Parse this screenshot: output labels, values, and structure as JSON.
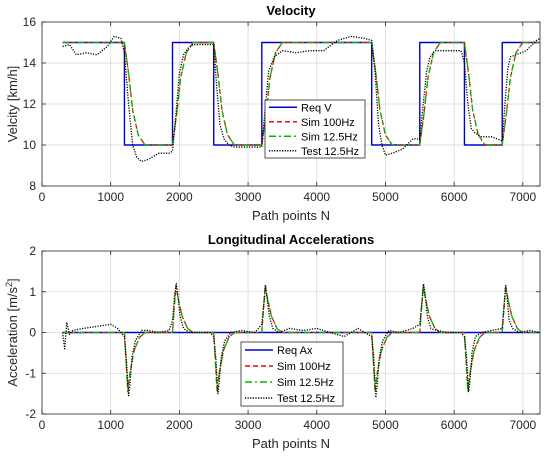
{
  "figure": {
    "colors": {
      "req": "#0000cc",
      "sim100": "#ff0000",
      "sim125": "#00bb00",
      "test": "#000000",
      "grid": "#d9d9d9",
      "axis": "#262626"
    }
  },
  "chart_data": [
    {
      "type": "line",
      "title": "Velocity",
      "xlabel": "Path points N",
      "ylabel": "Velcity [km/h]",
      "xlim": [
        0,
        7250
      ],
      "ylim": [
        8,
        16
      ],
      "xticks": [
        0,
        1000,
        2000,
        3000,
        4000,
        5000,
        6000,
        7000
      ],
      "xtick_labels": [
        "0",
        "1000",
        "2000",
        "3000",
        "4000",
        "5000",
        "6000",
        "7000"
      ],
      "yticks": [
        8,
        10,
        12,
        14,
        16
      ],
      "ytick_labels": [
        "8",
        "10",
        "12",
        "14",
        "16"
      ],
      "grid": true,
      "legend": "center",
      "series": [
        {
          "name": "Req V",
          "color": "#0000cc",
          "style": "solid",
          "x": [
            300,
            1200,
            1200,
            1900,
            1900,
            2500,
            2500,
            3200,
            3200,
            4800,
            4800,
            5500,
            5500,
            6150,
            6150,
            6700,
            6700,
            7250
          ],
          "y": [
            15,
            15,
            10,
            10,
            15,
            15,
            10,
            10,
            15,
            15,
            10,
            10,
            15,
            15,
            10,
            10,
            15,
            15
          ]
        },
        {
          "name": "Sim 100Hz",
          "color": "#ff0000",
          "style": "dashed",
          "x": [
            300,
            1200,
            1260,
            1320,
            1400,
            1500,
            1900,
            1960,
            2020,
            2100,
            2200,
            2500,
            2560,
            2620,
            2700,
            2800,
            3200,
            3260,
            3320,
            3400,
            3500,
            4800,
            4860,
            4920,
            5000,
            5100,
            5500,
            5560,
            5620,
            5700,
            5800,
            6150,
            6210,
            6270,
            6350,
            6450,
            6700,
            6760,
            6820,
            6900,
            7000,
            7250
          ],
          "y": [
            15,
            15,
            13.5,
            11.7,
            10.5,
            10,
            10,
            11.5,
            13.3,
            14.5,
            15,
            15,
            13.5,
            11.7,
            10.5,
            10,
            10,
            11.5,
            13.3,
            14.5,
            15,
            15,
            13.5,
            11.7,
            10.5,
            10,
            10,
            11.5,
            13.3,
            14.5,
            15,
            15,
            13.5,
            11.7,
            10.5,
            10,
            10,
            11.5,
            13.3,
            14.5,
            15,
            15
          ]
        },
        {
          "name": "Sim 12.5Hz",
          "color": "#00bb00",
          "style": "dashdot",
          "x": [
            300,
            1200,
            1260,
            1320,
            1400,
            1500,
            1900,
            1960,
            2020,
            2100,
            2200,
            2500,
            2560,
            2620,
            2700,
            2800,
            3200,
            3260,
            3320,
            3400,
            3500,
            4800,
            4860,
            4920,
            5000,
            5100,
            5500,
            5560,
            5620,
            5700,
            5800,
            6150,
            6210,
            6270,
            6350,
            6450,
            6700,
            6760,
            6820,
            6900,
            7000,
            7250
          ],
          "y": [
            15,
            15,
            13.5,
            11.7,
            10.5,
            10,
            10,
            11.5,
            13.3,
            14.5,
            15,
            15,
            13.5,
            11.7,
            10.5,
            10,
            10,
            11.5,
            13.3,
            14.5,
            15,
            15,
            13.5,
            11.7,
            10.5,
            10,
            10,
            11.5,
            13.3,
            14.5,
            15,
            15,
            13.5,
            11.7,
            10.5,
            10,
            10,
            11.5,
            13.3,
            14.5,
            15,
            15
          ]
        },
        {
          "name": "Test 12.5Hz",
          "color": "#000000",
          "style": "dotted",
          "x": [
            300,
            400,
            500,
            650,
            800,
            950,
            1050,
            1150,
            1200,
            1260,
            1320,
            1380,
            1450,
            1550,
            1700,
            1850,
            1900,
            1950,
            2000,
            2060,
            2120,
            2200,
            2350,
            2500,
            2540,
            2590,
            2650,
            2720,
            2800,
            3000,
            3200,
            3250,
            3300,
            3380,
            3500,
            3700,
            3900,
            4100,
            4300,
            4500,
            4700,
            4800,
            4850,
            4900,
            4950,
            5000,
            5100,
            5250,
            5400,
            5500,
            5550,
            5600,
            5650,
            5720,
            5800,
            5950,
            6100,
            6150,
            6200,
            6250,
            6300,
            6400,
            6550,
            6700,
            6740,
            6780,
            6820,
            6900,
            7050,
            7200,
            7250
          ],
          "y": [
            14.8,
            14.9,
            14.4,
            14.5,
            14.4,
            14.8,
            15.3,
            15.2,
            14.5,
            12.0,
            10.0,
            9.4,
            9.2,
            9.3,
            9.6,
            9.6,
            9.7,
            11.5,
            13.5,
            14.4,
            14.7,
            14.9,
            14.9,
            14.9,
            13.0,
            11.0,
            10.3,
            10.0,
            9.9,
            9.9,
            9.9,
            11.8,
            13.6,
            14.3,
            14.6,
            14.5,
            14.6,
            14.6,
            15.1,
            15.3,
            15.2,
            15.1,
            13.5,
            11.0,
            10.0,
            9.5,
            9.6,
            9.8,
            10.3,
            10.3,
            12.0,
            13.6,
            14.3,
            14.6,
            14.6,
            14.6,
            14.6,
            14.0,
            12.0,
            10.8,
            10.6,
            10.4,
            10.4,
            10.2,
            12.0,
            13.7,
            14.3,
            14.4,
            14.6,
            15.1,
            15.2
          ]
        }
      ]
    },
    {
      "type": "line",
      "title": "Longitudinal Accelerations",
      "xlabel": "Path points N",
      "ylabel": "Acceleration [m/s",
      "ylabel_sup": "2",
      "ylabel_end": "]",
      "xlim": [
        0,
        7250
      ],
      "ylim": [
        -2,
        2
      ],
      "xticks": [
        0,
        1000,
        2000,
        3000,
        4000,
        5000,
        6000,
        7000
      ],
      "xtick_labels": [
        "0",
        "1000",
        "2000",
        "3000",
        "4000",
        "5000",
        "6000",
        "7000"
      ],
      "yticks": [
        -2,
        -1,
        0,
        1,
        2
      ],
      "ytick_labels": [
        "-2",
        "-1",
        "0",
        "1",
        "2"
      ],
      "grid": true,
      "legend": "center",
      "series": [
        {
          "name": "Req Ax",
          "color": "#0000cc",
          "style": "solid",
          "x": [
            300,
            7250
          ],
          "y": [
            0,
            0
          ]
        },
        {
          "name": "Sim 100Hz",
          "color": "#ff0000",
          "style": "dashed",
          "x": [
            300,
            1200,
            1220,
            1250,
            1280,
            1340,
            1420,
            1500,
            1900,
            1920,
            1950,
            1980,
            2040,
            2120,
            2200,
            2500,
            2520,
            2550,
            2580,
            2640,
            2720,
            2800,
            3200,
            3220,
            3250,
            3280,
            3340,
            3420,
            3500,
            4800,
            4820,
            4850,
            4880,
            4940,
            5020,
            5100,
            5500,
            5520,
            5550,
            5580,
            5640,
            5720,
            5800,
            6150,
            6170,
            6200,
            6230,
            6290,
            6370,
            6450,
            6700,
            6720,
            6750,
            6780,
            6840,
            6920,
            7000,
            7250
          ],
          "y": [
            0,
            0,
            -0.6,
            -1.45,
            -1.0,
            -0.45,
            -0.12,
            0,
            0,
            0.5,
            1.15,
            0.85,
            0.4,
            0.1,
            0,
            0,
            -0.6,
            -1.45,
            -1.0,
            -0.45,
            -0.12,
            0,
            0,
            0.5,
            1.15,
            0.85,
            0.4,
            0.1,
            0,
            0,
            -0.6,
            -1.45,
            -1.0,
            -0.45,
            -0.12,
            0,
            0,
            0.5,
            1.15,
            0.85,
            0.4,
            0.1,
            0,
            0,
            -0.6,
            -1.45,
            -1.0,
            -0.45,
            -0.12,
            0,
            0,
            0.5,
            1.15,
            0.85,
            0.4,
            0.1,
            0,
            0
          ]
        },
        {
          "name": "Sim 12.5Hz",
          "color": "#00bb00",
          "style": "dashdot",
          "x": [
            300,
            1200,
            1220,
            1250,
            1280,
            1340,
            1420,
            1500,
            1900,
            1920,
            1950,
            1980,
            2040,
            2120,
            2200,
            2500,
            2520,
            2550,
            2580,
            2640,
            2720,
            2800,
            3200,
            3220,
            3250,
            3280,
            3340,
            3420,
            3500,
            4800,
            4820,
            4850,
            4880,
            4940,
            5020,
            5100,
            5500,
            5520,
            5550,
            5580,
            5640,
            5720,
            5800,
            6150,
            6170,
            6200,
            6230,
            6290,
            6370,
            6450,
            6700,
            6720,
            6750,
            6780,
            6840,
            6920,
            7000,
            7250
          ],
          "y": [
            0,
            0,
            -0.6,
            -1.45,
            -1.0,
            -0.45,
            -0.12,
            0,
            0,
            0.5,
            1.15,
            0.85,
            0.4,
            0.1,
            0,
            0,
            -0.6,
            -1.45,
            -1.0,
            -0.45,
            -0.12,
            0,
            0,
            0.5,
            1.15,
            0.85,
            0.4,
            0.1,
            0,
            0,
            -0.6,
            -1.45,
            -1.0,
            -0.45,
            -0.12,
            0,
            0,
            0.5,
            1.15,
            0.85,
            0.4,
            0.1,
            0,
            0,
            -0.6,
            -1.45,
            -1.0,
            -0.45,
            -0.12,
            0,
            0,
            0.5,
            1.15,
            0.85,
            0.4,
            0.1,
            0,
            0
          ]
        },
        {
          "name": "Test 12.5Hz",
          "color": "#000000",
          "style": "dotted",
          "x": [
            300,
            330,
            360,
            400,
            450,
            600,
            800,
            1000,
            1100,
            1200,
            1230,
            1260,
            1280,
            1310,
            1360,
            1450,
            1550,
            1700,
            1850,
            1900,
            1930,
            1955,
            1980,
            2010,
            2060,
            2150,
            2300,
            2450,
            2500,
            2530,
            2560,
            2580,
            2610,
            2660,
            2750,
            2900,
            3100,
            3200,
            3230,
            3255,
            3280,
            3310,
            3360,
            3450,
            3600,
            3800,
            4000,
            4200,
            4400,
            4600,
            4800,
            4830,
            4860,
            4880,
            4910,
            4960,
            5050,
            5200,
            5400,
            5500,
            5530,
            5555,
            5580,
            5610,
            5660,
            5750,
            5900,
            6100,
            6150,
            6180,
            6210,
            6230,
            6260,
            6310,
            6400,
            6550,
            6700,
            6725,
            6750,
            6775,
            6800,
            6850,
            6950,
            7100,
            7250
          ],
          "y": [
            0,
            -0.4,
            0.25,
            -0.05,
            0.05,
            0.1,
            0.15,
            0.2,
            0.1,
            -0.1,
            -0.7,
            -1.55,
            -1.3,
            -0.6,
            -0.2,
            0.05,
            0.05,
            0.0,
            0.05,
            0.3,
            0.9,
            1.2,
            0.9,
            0.4,
            0.1,
            0.0,
            0.0,
            0.0,
            -0.1,
            -0.6,
            -1.5,
            -1.2,
            -0.6,
            -0.2,
            0.0,
            0.05,
            0.0,
            0.2,
            0.7,
            1.15,
            0.8,
            0.4,
            0.1,
            0.0,
            0.1,
            0.05,
            0.1,
            0.0,
            -0.1,
            0.1,
            -0.1,
            -0.6,
            -1.6,
            -1.3,
            -0.6,
            -0.2,
            0.05,
            0.0,
            0.1,
            0.2,
            0.7,
            1.2,
            0.9,
            0.4,
            0.1,
            0.05,
            0.0,
            0.0,
            -0.1,
            -0.6,
            -1.45,
            -1.2,
            -0.5,
            -0.1,
            0.0,
            0.05,
            0.1,
            0.6,
            1.15,
            0.8,
            0.3,
            0.1,
            0.0,
            0.05,
            0.0
          ]
        }
      ]
    }
  ]
}
